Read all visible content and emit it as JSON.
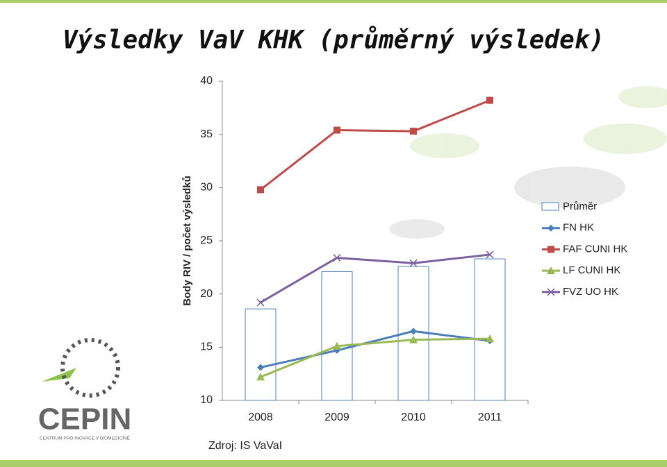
{
  "chart_data": {
    "type": "combo",
    "title": "Výsledky VaV KHK (průměrný výsledek)",
    "y_label": "Body RIV / počet výsledků",
    "source": "Zdroj: IS VaVaI",
    "categories": [
      "2008",
      "2009",
      "2010",
      "2011"
    ],
    "ylim": [
      10,
      40
    ],
    "yticks": [
      10,
      15,
      20,
      25,
      30,
      35,
      40
    ],
    "legend": "right",
    "series": [
      {
        "name": "Průměr",
        "type": "bar",
        "color": "#4f81bd",
        "values": [
          18.6,
          22.1,
          22.6,
          23.3
        ]
      },
      {
        "name": "FN HK",
        "type": "line",
        "marker": "diamond",
        "color": "#4a7ebb",
        "values": [
          13.1,
          14.7,
          16.5,
          15.6
        ]
      },
      {
        "name": "FAF CUNI HK",
        "type": "line",
        "marker": "square",
        "color": "#be4b48",
        "values": [
          29.8,
          35.4,
          35.3,
          38.2
        ]
      },
      {
        "name": "LF CUNI HK",
        "type": "line",
        "marker": "triangle",
        "color": "#98b954",
        "values": [
          12.2,
          15.1,
          15.7,
          15.8
        ]
      },
      {
        "name": "FVZ UO HK",
        "type": "line",
        "marker": "x",
        "color": "#7d5fa0",
        "values": [
          19.2,
          23.4,
          22.9,
          23.7
        ]
      }
    ]
  },
  "logo": {
    "name": "CEPIN",
    "subtitle": "CENTRUM PRO INOVACE V BIOMEDICÍNĚ"
  }
}
